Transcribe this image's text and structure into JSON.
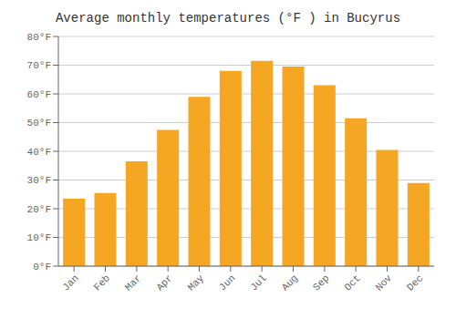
{
  "chart_data": {
    "type": "bar",
    "title": "Average monthly temperatures (°F ) in Bucyrus",
    "categories": [
      "Jan",
      "Feb",
      "Mar",
      "Apr",
      "May",
      "Jun",
      "Jul",
      "Aug",
      "Sep",
      "Oct",
      "Nov",
      "Dec"
    ],
    "values": [
      23.5,
      25.5,
      36.5,
      47.5,
      59,
      68,
      71.5,
      69.5,
      63,
      51.5,
      40.5,
      29
    ],
    "color": "#F5A623",
    "ylim": [
      0,
      80
    ],
    "yticks": [
      {
        "value": 0,
        "label": "0°F"
      },
      {
        "value": 10,
        "label": "10°F"
      },
      {
        "value": 20,
        "label": "20°F"
      },
      {
        "value": 30,
        "label": "30°F"
      },
      {
        "value": 40,
        "label": "40°F"
      },
      {
        "value": 50,
        "label": "50°F"
      },
      {
        "value": 60,
        "label": "60°F"
      },
      {
        "value": 70,
        "label": "70°F"
      },
      {
        "value": 80,
        "label": "80°F"
      }
    ],
    "grid": true
  }
}
